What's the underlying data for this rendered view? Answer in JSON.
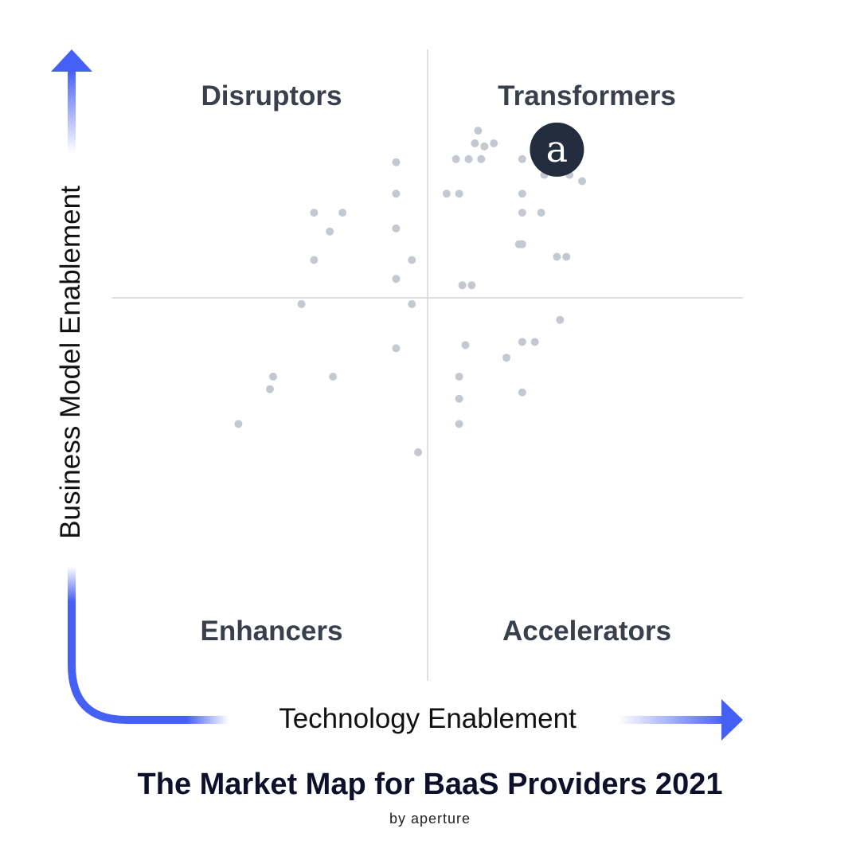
{
  "chart_data": {
    "type": "scatter",
    "title": "The Market Map for BaaS Providers 2021",
    "subtitle": "by aperture",
    "xlabel": "Technology Enablement",
    "ylabel": "Business Model Enablement",
    "xlim": [
      -10,
      10
    ],
    "ylim": [
      -10,
      10
    ],
    "grid": false,
    "quadrants": {
      "top_left": "Disruptors",
      "top_right": "Transformers",
      "bottom_left": "Enhancers",
      "bottom_right": "Accelerators"
    },
    "highlight": {
      "name": "Aperture",
      "x": 4.1,
      "y": 4.7,
      "logo_letter": "a"
    },
    "x": [
      1.6,
      1.5,
      1.8,
      2.1,
      0.9,
      1.3,
      1.7,
      3.0,
      3.7,
      4.5,
      4.9,
      3.0,
      3.6,
      0.6,
      1.0,
      -1.0,
      -1.0,
      -1.0,
      3.0,
      2.9,
      -3.6,
      -2.7,
      -3.1,
      -3.6,
      -1.0,
      1.1,
      3.0,
      4.1,
      4.4,
      -0.5,
      1.4,
      -4.0,
      -0.5,
      4.2,
      3.0,
      3.4,
      1.2,
      -1.0,
      2.5,
      -4.9,
      -3.0,
      1.0,
      -5.0,
      3.0,
      1.0,
      -6.0,
      1.0,
      -0.3
    ],
    "y": [
      5.3,
      4.9,
      4.8,
      4.9,
      4.4,
      4.4,
      4.4,
      4.4,
      3.9,
      3.9,
      3.7,
      3.3,
      2.7,
      3.3,
      3.3,
      4.3,
      3.3,
      2.2,
      2.7,
      1.7,
      2.7,
      2.7,
      2.1,
      1.2,
      0.6,
      0.4,
      1.7,
      1.3,
      1.3,
      1.2,
      0.4,
      -0.2,
      -0.2,
      -0.7,
      -1.4,
      -1.4,
      -1.5,
      -1.6,
      -1.9,
      -2.5,
      -2.5,
      -2.5,
      -2.9,
      -3.0,
      -3.2,
      -4.0,
      -4.0,
      -4.9
    ]
  },
  "colors": {
    "point": "#c4c8d0",
    "logo_fill": "#232d3d",
    "arrow": "#4560f5",
    "quadrant_text": "#3a3f4c",
    "divider": "#d5d5d5"
  }
}
